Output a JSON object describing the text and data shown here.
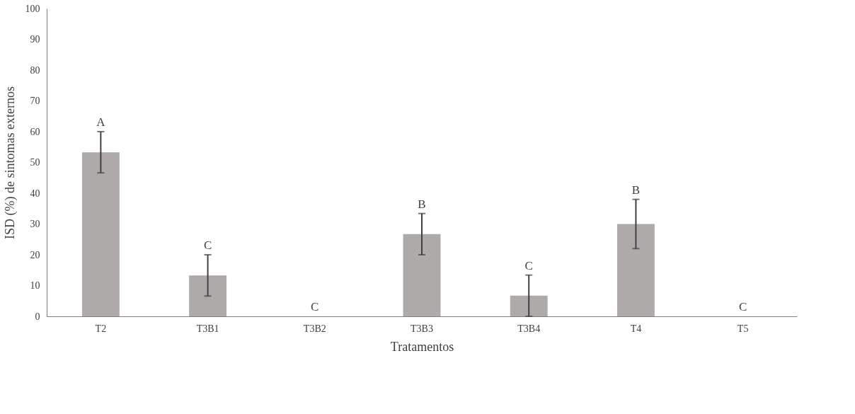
{
  "chart_data": {
    "type": "bar",
    "xlabel": "Tratamentos",
    "ylabel": "ISD (%) de sintomas externos",
    "categories": [
      "T2",
      "T3B1",
      "T3B2",
      "T3B3",
      "T3B4",
      "T4",
      "T5"
    ],
    "values": [
      53.3,
      13.3,
      0,
      26.7,
      6.7,
      30,
      0
    ],
    "errors": [
      6.7,
      6.7,
      null,
      6.7,
      6.7,
      8,
      null
    ],
    "color": "#aeaaaa",
    "ylim": [
      0,
      100
    ],
    "yticks": [
      0,
      10,
      20,
      30,
      40,
      50,
      60,
      70,
      80,
      90,
      100
    ],
    "grid": false,
    "annotations": [
      {
        "text": "A",
        "x": "T2",
        "y": 60
      },
      {
        "text": "C",
        "x": "T3B1",
        "y": 20
      },
      {
        "text": "C",
        "x": "T3B2",
        "y": 0
      },
      {
        "text": "B",
        "x": "T3B3",
        "y": 33.4
      },
      {
        "text": "C",
        "x": "T3B4",
        "y": 13.4
      },
      {
        "text": "B",
        "x": "T4",
        "y": 38
      },
      {
        "text": "C",
        "x": "T5",
        "y": 0
      }
    ]
  }
}
